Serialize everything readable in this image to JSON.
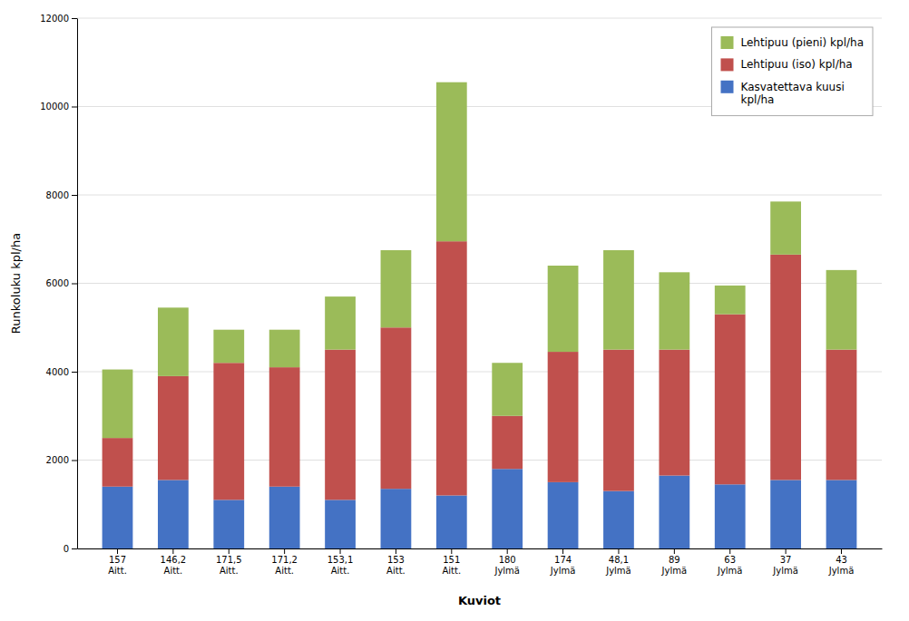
{
  "chart_data": {
    "type": "bar",
    "stacked": true,
    "categories": [
      "157\nAitt.",
      "146,2\nAitt.",
      "171,5\nAitt.",
      "171,2\nAitt.",
      "153,1\nAitt.",
      "153\nAitt.",
      "151\nAitt.",
      "180\nJylmä",
      "174\nJylmä",
      "48,1\nJylmä",
      "89\nJylmä",
      "63\nJylmä",
      "37\nJylmä",
      "43\nJylmä"
    ],
    "series": [
      {
        "name": "Kasvatettava kuusi\nkpl/ha",
        "color": "#4472C4",
        "values": [
          1400,
          1550,
          1100,
          1400,
          1100,
          1350,
          1200,
          1800,
          1500,
          1300,
          1650,
          1450,
          1550,
          1550
        ]
      },
      {
        "name": "Lehtipuu (iso) kpl/ha",
        "color": "#C0504D",
        "values": [
          1100,
          2350,
          3100,
          2700,
          3400,
          3650,
          5750,
          1200,
          2950,
          3200,
          2850,
          3850,
          5100,
          2950
        ]
      },
      {
        "name": "Lehtipuu (pieni) kpl/ha",
        "color": "#9BBB59",
        "values": [
          1550,
          1550,
          750,
          850,
          1200,
          1750,
          3600,
          1200,
          1950,
          2250,
          1750,
          650,
          1200,
          1800
        ]
      }
    ],
    "xlabel": "Kuviot",
    "ylabel": "Runkoluku kpl/ha",
    "ylim": [
      0,
      12000
    ],
    "yticks": [
      0,
      2000,
      4000,
      6000,
      8000,
      10000,
      12000
    ],
    "grid": true,
    "legend": "upper right"
  }
}
